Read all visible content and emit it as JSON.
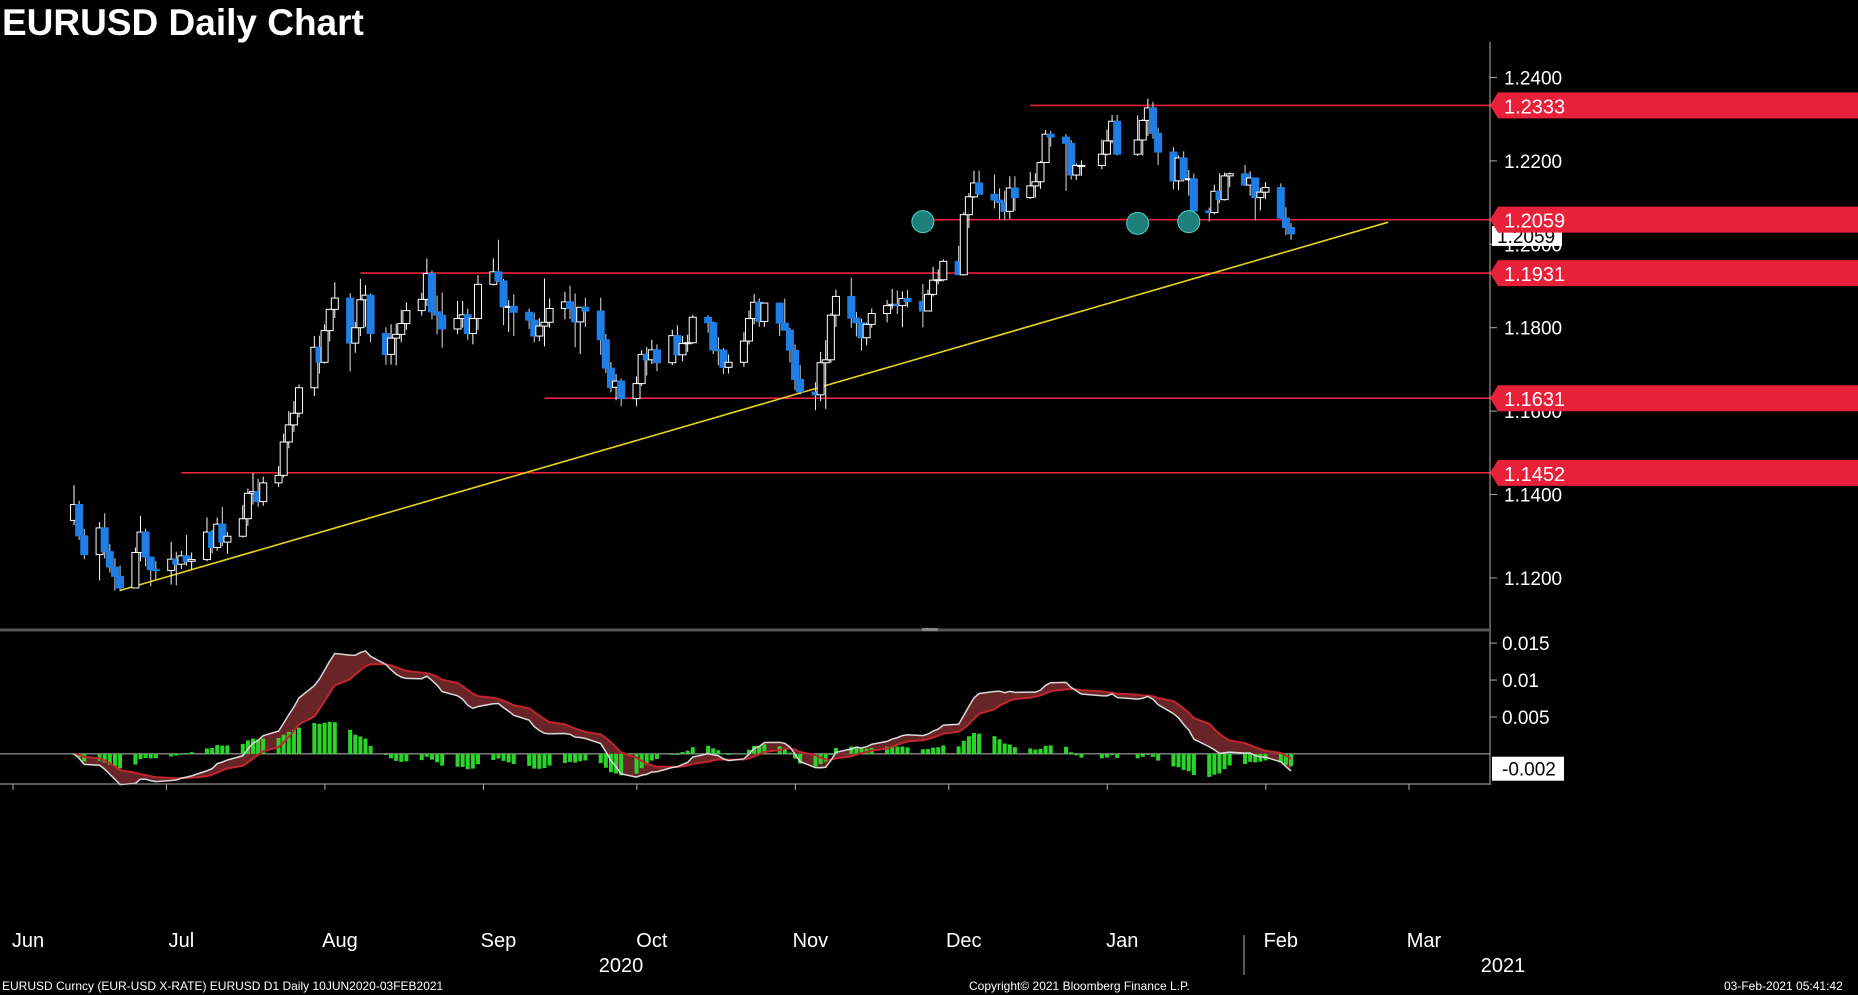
{
  "title": "EURUSD Daily Chart",
  "footer": {
    "left": "EURUSD Curncy (EUR-USD X-RATE) EURUSD D1  Daily 10JUN2020-03FEB2021",
    "center": "Copyright© 2021 Bloomberg Finance L.P.",
    "right": "03-Feb-2021 05:41:42"
  },
  "colors": {
    "background": "#000000",
    "up_candle": "#ffffff",
    "down_candle": "#1e7ee6",
    "level_line": "#e8203a",
    "trendline": "#e6d21a",
    "marker": "#1f7f7a",
    "hist_positive": "#2bd42b",
    "macd_line": "#d9d9d9",
    "signal_line": "#c0262d"
  },
  "chart_data": {
    "type": "candlestick",
    "title": "EURUSD Daily Chart",
    "x_axis": {
      "months": [
        "Jun",
        "Jul",
        "Aug",
        "Sep",
        "Oct",
        "Nov",
        "Dec",
        "Jan",
        "Feb",
        "Mar"
      ],
      "years": [
        "2020",
        "2021"
      ]
    },
    "price_axis": {
      "ticks": [
        "1.2400",
        "1.2200",
        "1.2000",
        "1.1800",
        "1.1600",
        "1.1400",
        "1.1200"
      ],
      "ylim": [
        1.108,
        1.2485
      ]
    },
    "price_labels": [
      "1.2333",
      "1.2059",
      "1.1931",
      "1.1631",
      "1.1452"
    ],
    "last_price_label": "1.2059",
    "horizontal_levels": [
      {
        "value": 1.2333,
        "start": "2020-12-14"
      },
      {
        "value": 1.2059,
        "start": "2020-11-23"
      },
      {
        "value": 1.1931,
        "start": "2020-08-05"
      },
      {
        "value": 1.1631,
        "start": "2020-09-10"
      },
      {
        "value": 1.1452,
        "start": "2020-07-01"
      }
    ],
    "trendline": {
      "start": [
        "2020-06-19",
        1.117
      ],
      "end": [
        "2021-02-22",
        1.2053
      ]
    },
    "markers": [
      {
        "date": "2020-11-23",
        "value": 1.2059
      },
      {
        "date": "2021-01-04",
        "value": 1.2055
      },
      {
        "date": "2021-01-14",
        "value": 1.2059
      }
    ],
    "candles": [
      [
        "2020-06-10",
        1.1338,
        1.1422,
        1.1327,
        1.1376
      ],
      [
        "2020-06-11",
        1.1376,
        1.1385,
        1.1291,
        1.1301
      ],
      [
        "2020-06-12",
        1.1301,
        1.1318,
        1.1245,
        1.1256
      ],
      [
        "2020-06-15",
        1.1256,
        1.1334,
        1.1194,
        1.132
      ],
      [
        "2020-06-16",
        1.132,
        1.1355,
        1.1247,
        1.1263
      ],
      [
        "2020-06-17",
        1.1263,
        1.1281,
        1.1213,
        1.1226
      ],
      [
        "2020-06-18",
        1.1226,
        1.1247,
        1.117,
        1.1204
      ],
      [
        "2020-06-19",
        1.1204,
        1.123,
        1.1168,
        1.1176
      ],
      [
        "2020-06-22",
        1.1176,
        1.1273,
        1.1178,
        1.1261
      ],
      [
        "2020-06-23",
        1.1261,
        1.1349,
        1.124,
        1.131
      ],
      [
        "2020-06-24",
        1.131,
        1.1318,
        1.1228,
        1.125
      ],
      [
        "2020-06-25",
        1.125,
        1.125,
        1.118,
        1.122
      ],
      [
        "2020-06-26",
        1.122,
        1.124,
        1.1197,
        1.1218
      ],
      [
        "2020-06-29",
        1.1218,
        1.1287,
        1.1184,
        1.1245
      ],
      [
        "2020-06-30",
        1.1245,
        1.1263,
        1.1182,
        1.1233
      ],
      [
        "2020-07-01",
        1.1233,
        1.1265,
        1.1222,
        1.1253
      ],
      [
        "2020-07-02",
        1.1253,
        1.1303,
        1.1229,
        1.124
      ],
      [
        "2020-07-03",
        1.124,
        1.1261,
        1.122,
        1.1244
      ],
      [
        "2020-07-06",
        1.1244,
        1.1345,
        1.124,
        1.131
      ],
      [
        "2020-07-07",
        1.131,
        1.1315,
        1.1259,
        1.1273
      ],
      [
        "2020-07-08",
        1.1273,
        1.1345,
        1.1265,
        1.1329
      ],
      [
        "2020-07-09",
        1.1329,
        1.137,
        1.1276,
        1.1286
      ],
      [
        "2020-07-10",
        1.1286,
        1.131,
        1.1258,
        1.13
      ],
      [
        "2020-07-13",
        1.13,
        1.1375,
        1.1297,
        1.1342
      ],
      [
        "2020-07-14",
        1.1342,
        1.1414,
        1.1325,
        1.1403
      ],
      [
        "2020-07-15",
        1.1403,
        1.1452,
        1.1376,
        1.1407
      ],
      [
        "2020-07-16",
        1.1407,
        1.1438,
        1.1371,
        1.1383
      ],
      [
        "2020-07-17",
        1.1383,
        1.1443,
        1.1373,
        1.1428
      ],
      [
        "2020-07-20",
        1.1428,
        1.1468,
        1.1418,
        1.1446
      ],
      [
        "2020-07-21",
        1.1446,
        1.1546,
        1.1441,
        1.1526
      ],
      [
        "2020-07-22",
        1.1526,
        1.16,
        1.1511,
        1.1567
      ],
      [
        "2020-07-23",
        1.1567,
        1.1624,
        1.155,
        1.1595
      ],
      [
        "2020-07-24",
        1.1595,
        1.1664,
        1.1585,
        1.1656
      ],
      [
        "2020-07-27",
        1.1656,
        1.178,
        1.1636,
        1.1753
      ],
      [
        "2020-07-28",
        1.1753,
        1.1781,
        1.169,
        1.1717
      ],
      [
        "2020-07-29",
        1.1717,
        1.1808,
        1.1714,
        1.1793
      ],
      [
        "2020-07-30",
        1.1793,
        1.1843,
        1.1767,
        1.1844
      ],
      [
        "2020-07-31",
        1.1844,
        1.1909,
        1.1823,
        1.1871
      ],
      [
        "2020-08-03",
        1.1871,
        1.1883,
        1.1695,
        1.1763
      ],
      [
        "2020-08-04",
        1.1763,
        1.1814,
        1.174,
        1.18
      ],
      [
        "2020-08-05",
        1.18,
        1.1917,
        1.178,
        1.1867
      ],
      [
        "2020-08-06",
        1.1867,
        1.1902,
        1.1802,
        1.1878
      ],
      [
        "2020-08-07",
        1.1878,
        1.1882,
        1.1765,
        1.1786
      ],
      [
        "2020-08-10",
        1.1786,
        1.1801,
        1.1711,
        1.1736
      ],
      [
        "2020-08-11",
        1.1736,
        1.1808,
        1.1712,
        1.1775
      ],
      [
        "2020-08-12",
        1.1775,
        1.181,
        1.171,
        1.1784
      ],
      [
        "2020-08-13",
        1.1784,
        1.1843,
        1.1765,
        1.181
      ],
      [
        "2020-08-14",
        1.181,
        1.1861,
        1.1795,
        1.1841
      ],
      [
        "2020-08-17",
        1.1841,
        1.1884,
        1.1829,
        1.1868
      ],
      [
        "2020-08-18",
        1.1868,
        1.1966,
        1.1852,
        1.193
      ],
      [
        "2020-08-19",
        1.193,
        1.1937,
        1.182,
        1.1838
      ],
      [
        "2020-08-20",
        1.1838,
        1.1877,
        1.1784,
        1.183
      ],
      [
        "2020-08-21",
        1.183,
        1.1884,
        1.1752,
        1.1797
      ],
      [
        "2020-08-24",
        1.1797,
        1.1864,
        1.1785,
        1.1822
      ],
      [
        "2020-08-25",
        1.1822,
        1.1864,
        1.18,
        1.1831
      ],
      [
        "2020-08-26",
        1.1831,
        1.1846,
        1.1771,
        1.1786
      ],
      [
        "2020-08-27",
        1.1786,
        1.1823,
        1.176,
        1.1822
      ],
      [
        "2020-08-28",
        1.1822,
        1.1926,
        1.1795,
        1.1904
      ],
      [
        "2020-08-31",
        1.1904,
        1.1966,
        1.1901,
        1.1934
      ],
      [
        "2020-09-01",
        1.1934,
        1.2011,
        1.191,
        1.1912
      ],
      [
        "2020-09-02",
        1.1912,
        1.1917,
        1.1806,
        1.185
      ],
      [
        "2020-09-03",
        1.185,
        1.1866,
        1.179,
        1.1851
      ],
      [
        "2020-09-04",
        1.1851,
        1.188,
        1.178,
        1.1837
      ],
      [
        "2020-09-07",
        1.1837,
        1.1846,
        1.1797,
        1.1818
      ],
      [
        "2020-09-08",
        1.1818,
        1.1836,
        1.1765,
        1.178
      ],
      [
        "2020-09-09",
        1.178,
        1.1823,
        1.1768,
        1.1804
      ],
      [
        "2020-09-10",
        1.1804,
        1.1918,
        1.1755,
        1.1813
      ],
      [
        "2020-09-11",
        1.1813,
        1.187,
        1.18,
        1.1846
      ],
      [
        "2020-09-14",
        1.1846,
        1.1886,
        1.182,
        1.1862
      ],
      [
        "2020-09-15",
        1.1862,
        1.1901,
        1.1821,
        1.1846
      ],
      [
        "2020-09-16",
        1.1846,
        1.1882,
        1.1753,
        1.1814
      ],
      [
        "2020-09-17",
        1.1814,
        1.184,
        1.1737,
        1.1849
      ],
      [
        "2020-09-18",
        1.1849,
        1.1872,
        1.1802,
        1.184
      ],
      [
        "2020-09-21",
        1.184,
        1.1872,
        1.1735,
        1.1771
      ],
      [
        "2020-09-22",
        1.1771,
        1.1785,
        1.1691,
        1.1703
      ],
      [
        "2020-09-23",
        1.1703,
        1.1718,
        1.1645,
        1.1657
      ],
      [
        "2020-09-24",
        1.1657,
        1.1689,
        1.1626,
        1.1672
      ],
      [
        "2020-09-25",
        1.1672,
        1.1678,
        1.1612,
        1.163
      ],
      [
        "2020-09-28",
        1.163,
        1.1683,
        1.1612,
        1.1666
      ],
      [
        "2020-09-29",
        1.1666,
        1.1746,
        1.166,
        1.1736
      ],
      [
        "2020-09-30",
        1.1736,
        1.1754,
        1.1685,
        1.1723
      ],
      [
        "2020-10-01",
        1.1723,
        1.1771,
        1.1713,
        1.1747
      ],
      [
        "2020-10-02",
        1.1747,
        1.176,
        1.1696,
        1.1716
      ],
      [
        "2020-10-05",
        1.1716,
        1.1795,
        1.171,
        1.1781
      ],
      [
        "2020-10-06",
        1.1781,
        1.1806,
        1.1737,
        1.1735
      ],
      [
        "2020-10-07",
        1.1735,
        1.178,
        1.172,
        1.1762
      ],
      [
        "2020-10-08",
        1.1762,
        1.1783,
        1.1742,
        1.1764
      ],
      [
        "2020-10-09",
        1.1764,
        1.1831,
        1.1761,
        1.1825
      ],
      [
        "2020-10-12",
        1.1825,
        1.183,
        1.1788,
        1.1812
      ],
      [
        "2020-10-13",
        1.1812,
        1.1815,
        1.1737,
        1.1747
      ],
      [
        "2020-10-14",
        1.1747,
        1.1778,
        1.171,
        1.1746
      ],
      [
        "2020-10-15",
        1.1746,
        1.1751,
        1.1689,
        1.1705
      ],
      [
        "2020-10-16",
        1.1705,
        1.1736,
        1.169,
        1.1717
      ],
      [
        "2020-10-19",
        1.1717,
        1.1789,
        1.1706,
        1.1768
      ],
      [
        "2020-10-20",
        1.1768,
        1.1841,
        1.176,
        1.1822
      ],
      [
        "2020-10-21",
        1.1822,
        1.1881,
        1.1808,
        1.1861
      ],
      [
        "2020-10-22",
        1.1861,
        1.187,
        1.1802,
        1.1815
      ],
      [
        "2020-10-23",
        1.1815,
        1.186,
        1.1802,
        1.1859
      ],
      [
        "2020-10-26",
        1.1859,
        1.186,
        1.178,
        1.1811
      ],
      [
        "2020-10-27",
        1.1811,
        1.187,
        1.1798,
        1.1794
      ],
      [
        "2020-10-28",
        1.1794,
        1.18,
        1.1717,
        1.1746
      ],
      [
        "2020-10-29",
        1.1746,
        1.176,
        1.165,
        1.1676
      ],
      [
        "2020-10-30",
        1.1676,
        1.1711,
        1.164,
        1.1646
      ],
      [
        "2020-11-02",
        1.1646,
        1.1669,
        1.1602,
        1.1639
      ],
      [
        "2020-11-03",
        1.1639,
        1.1742,
        1.1624,
        1.1716
      ],
      [
        "2020-11-04",
        1.1716,
        1.177,
        1.1605,
        1.1723
      ],
      [
        "2020-11-05",
        1.1723,
        1.1835,
        1.1715,
        1.183
      ],
      [
        "2020-11-06",
        1.183,
        1.1891,
        1.1802,
        1.1875
      ],
      [
        "2020-11-09",
        1.1875,
        1.192,
        1.18,
        1.1823
      ],
      [
        "2020-11-10",
        1.1823,
        1.1838,
        1.1779,
        1.1812
      ],
      [
        "2020-11-11",
        1.1812,
        1.1822,
        1.1745,
        1.1776
      ],
      [
        "2020-11-12",
        1.1776,
        1.1812,
        1.1758,
        1.1808
      ],
      [
        "2020-11-13",
        1.1808,
        1.1846,
        1.18,
        1.1834
      ],
      [
        "2020-11-16",
        1.1834,
        1.1866,
        1.1813,
        1.1853
      ],
      [
        "2020-11-17",
        1.1853,
        1.1893,
        1.1844,
        1.1856
      ],
      [
        "2020-11-18",
        1.1856,
        1.1889,
        1.1833,
        1.1853
      ],
      [
        "2020-11-19",
        1.1853,
        1.1887,
        1.1801,
        1.187
      ],
      [
        "2020-11-20",
        1.187,
        1.189,
        1.1849,
        1.1863
      ],
      [
        "2020-11-23",
        1.1863,
        1.1905,
        1.1801,
        1.184
      ],
      [
        "2020-11-24",
        1.184,
        1.1891,
        1.1842,
        1.188
      ],
      [
        "2020-11-25",
        1.188,
        1.1946,
        1.1875,
        1.1914
      ],
      [
        "2020-11-26",
        1.1914,
        1.194,
        1.1904,
        1.1915
      ],
      [
        "2020-11-27",
        1.1915,
        1.1964,
        1.1911,
        1.1959
      ],
      [
        "2020-11-30",
        1.1959,
        1.1996,
        1.1926,
        1.1927
      ],
      [
        "2020-12-01",
        1.1927,
        1.2077,
        1.1925,
        1.2071
      ],
      [
        "2020-12-02",
        1.2071,
        1.2123,
        1.2039,
        1.2114
      ],
      [
        "2020-12-03",
        1.2114,
        1.2176,
        1.2111,
        1.2147
      ],
      [
        "2020-12-04",
        1.2147,
        1.2177,
        1.2118,
        1.212
      ],
      [
        "2020-12-07",
        1.212,
        1.2167,
        1.2086,
        1.2106
      ],
      [
        "2020-12-08",
        1.2106,
        1.2134,
        1.2059,
        1.21
      ],
      [
        "2020-12-09",
        1.21,
        1.2128,
        1.2058,
        1.2079
      ],
      [
        "2020-12-10",
        1.2079,
        1.2163,
        1.206,
        1.2135
      ],
      [
        "2020-12-11",
        1.2135,
        1.2163,
        1.208,
        1.2112
      ],
      [
        "2020-12-14",
        1.2112,
        1.2173,
        1.2109,
        1.214
      ],
      [
        "2020-12-15",
        1.214,
        1.217,
        1.2112,
        1.215
      ],
      [
        "2020-12-16",
        1.215,
        1.22,
        1.2133,
        1.2196
      ],
      [
        "2020-12-17",
        1.2196,
        1.2274,
        1.2195,
        1.2264
      ],
      [
        "2020-12-18",
        1.2264,
        1.2272,
        1.2234,
        1.2257
      ],
      [
        "2020-12-21",
        1.2257,
        1.2264,
        1.2128,
        1.2242
      ],
      [
        "2020-12-22",
        1.2242,
        1.225,
        1.2155,
        1.2166
      ],
      [
        "2020-12-23",
        1.2166,
        1.2194,
        1.2154,
        1.2189
      ],
      [
        "2020-12-24",
        1.2189,
        1.2201,
        1.2164,
        1.2189
      ],
      [
        "2020-12-28",
        1.2189,
        1.2251,
        1.218,
        1.2216
      ],
      [
        "2020-12-29",
        1.2216,
        1.2275,
        1.2213,
        1.2248
      ],
      [
        "2020-12-30",
        1.2248,
        1.231,
        1.2242,
        1.2295
      ],
      [
        "2020-12-31",
        1.2295,
        1.231,
        1.2213,
        1.2216
      ],
      [
        "2021-01-04",
        1.2216,
        1.2309,
        1.2212,
        1.225
      ],
      [
        "2021-01-05",
        1.225,
        1.23,
        1.2213,
        1.2297
      ],
      [
        "2021-01-06",
        1.2297,
        1.2349,
        1.226,
        1.2327
      ],
      [
        "2021-01-07",
        1.2327,
        1.2342,
        1.2253,
        1.2266
      ],
      [
        "2021-01-08",
        1.2266,
        1.228,
        1.219,
        1.2221
      ],
      [
        "2021-01-11",
        1.2221,
        1.2233,
        1.2132,
        1.2152
      ],
      [
        "2021-01-12",
        1.2152,
        1.2213,
        1.213,
        1.2207
      ],
      [
        "2021-01-13",
        1.2207,
        1.2223,
        1.215,
        1.2157
      ],
      [
        "2021-01-14",
        1.2157,
        1.2178,
        1.2117,
        1.2157
      ],
      [
        "2021-01-15",
        1.2157,
        1.217,
        1.2073,
        1.208
      ],
      [
        "2021-01-18",
        1.208,
        1.2088,
        1.2055,
        1.2076
      ],
      [
        "2021-01-19",
        1.2076,
        1.2143,
        1.2072,
        1.2127
      ],
      [
        "2021-01-20",
        1.2127,
        1.2171,
        1.2099,
        1.2107
      ],
      [
        "2021-01-21",
        1.2107,
        1.2172,
        1.2105,
        1.2164
      ],
      [
        "2021-01-22",
        1.2164,
        1.2172,
        1.2137,
        1.2169
      ],
      [
        "2021-01-25",
        1.2169,
        1.219,
        1.2139,
        1.2142
      ],
      [
        "2021-01-26",
        1.2142,
        1.2175,
        1.2117,
        1.2159
      ],
      [
        "2021-01-27",
        1.2159,
        1.216,
        1.2057,
        1.2112
      ],
      [
        "2021-01-28",
        1.2112,
        1.2135,
        1.2081,
        1.2125
      ],
      [
        "2021-01-29",
        1.2125,
        1.2149,
        1.2108,
        1.2136
      ],
      [
        "2021-02-01",
        1.2136,
        1.2146,
        1.2061,
        1.2063
      ],
      [
        "2021-02-02",
        1.2063,
        1.2089,
        1.2022,
        1.204
      ],
      [
        "2021-02-03",
        1.204,
        1.2051,
        1.2011,
        1.2025
      ]
    ],
    "macd_axis": {
      "ticks": [
        "0.015",
        "0.01",
        "0.005",
        "-0.002"
      ],
      "ylim": [
        -0.0038,
        0.0165
      ]
    }
  }
}
